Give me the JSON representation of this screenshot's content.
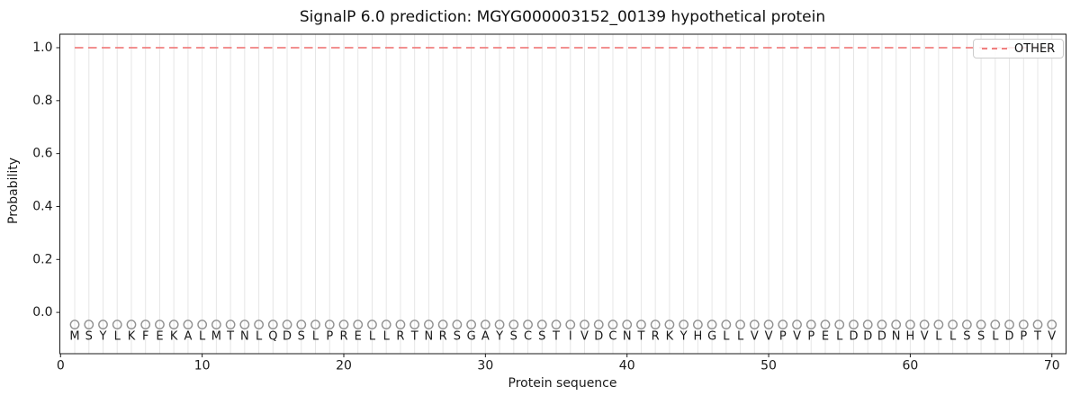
{
  "chart_data": {
    "type": "line",
    "title": "SignalP 6.0 prediction: MGYG000003152_00139 hypothetical protein",
    "xlabel": "Protein sequence",
    "ylabel": "Probability",
    "xlim": [
      -0.05,
      71.0
    ],
    "ylim": [
      -0.156,
      1.051
    ],
    "xticks": [
      0,
      10,
      20,
      30,
      40,
      50,
      60,
      70
    ],
    "yticks": [
      0.0,
      0.2,
      0.4,
      0.6,
      0.8,
      1.0
    ],
    "grid": {
      "axis": "x",
      "per_residue": true,
      "color": "#e6e6e6"
    },
    "frame_color": "#1a1a1a",
    "series": [
      {
        "name": "OTHER",
        "shape": "horizontal-dashed-line",
        "y": 1.0,
        "x_start": 1,
        "x_end": 70,
        "color": "#f08080",
        "note": "constant probability 1.0 for all 70 residues"
      }
    ],
    "legend": {
      "position": "upper-right",
      "entries": [
        {
          "label": "OTHER",
          "color": "#f08080",
          "linestyle": "dashed"
        }
      ]
    },
    "sequence": {
      "residues": "MSYLKFEKALMTNLQDSLPRELLRTNRSGAYSCSTIVDCNTRKYHGLLVVPVPELDDDNHVLLSSLDPTV",
      "length": 70,
      "marker": "circle-outline",
      "marker_color": "#919191",
      "marker_y": -0.046,
      "letter_y": -0.092,
      "letter_color": "#1a1a1a"
    }
  }
}
